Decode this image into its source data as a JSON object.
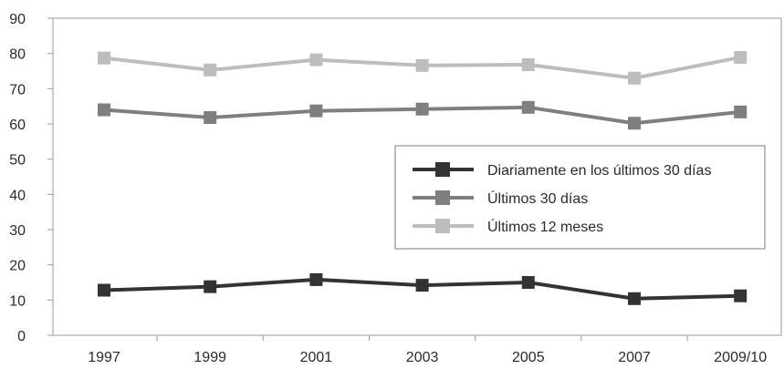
{
  "chart_data": {
    "type": "line",
    "categories": [
      "1997",
      "1999",
      "2001",
      "2003",
      "2005",
      "2007",
      "2009/10"
    ],
    "series": [
      {
        "name": "Diariamente en los últimos 30 días",
        "values": [
          12.8,
          13.8,
          15.8,
          14.2,
          15.0,
          10.4,
          11.2
        ],
        "color": "#333333"
      },
      {
        "name": "Últimos 30 días",
        "values": [
          64.0,
          61.8,
          63.7,
          64.2,
          64.7,
          60.2,
          63.4
        ],
        "color": "#7f7f7f"
      },
      {
        "name": "Últimos 12 meses",
        "values": [
          78.7,
          75.3,
          78.2,
          76.6,
          76.8,
          73.0,
          78.9
        ],
        "color": "#bdbdbd"
      }
    ],
    "ylim": [
      0,
      90
    ],
    "yticks": [
      0,
      10,
      20,
      30,
      40,
      50,
      60,
      70,
      80,
      90
    ],
    "grid": false,
    "legend_position": "center-right",
    "title": "",
    "xlabel": "",
    "ylabel": ""
  }
}
